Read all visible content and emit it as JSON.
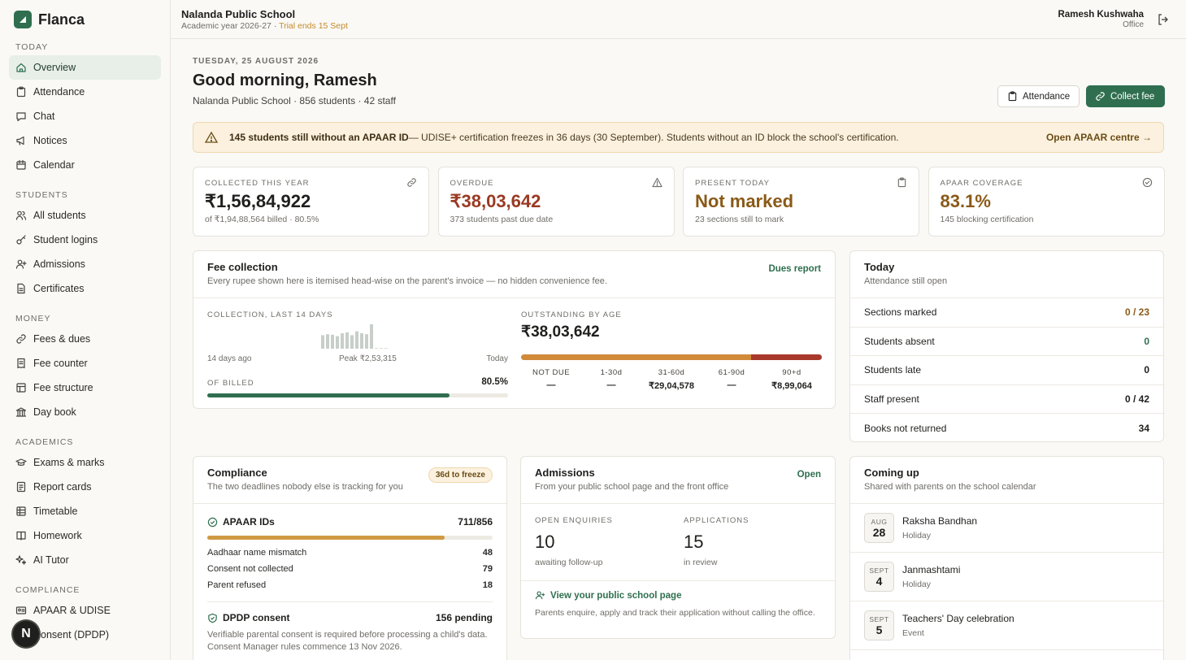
{
  "brand": {
    "name": "Flanca"
  },
  "sidebar": {
    "sections": [
      {
        "label": "TODAY",
        "items": [
          {
            "label": "Overview",
            "icon": "home-icon",
            "active": true
          },
          {
            "label": "Attendance",
            "icon": "clipboard-icon"
          },
          {
            "label": "Chat",
            "icon": "chat-icon"
          },
          {
            "label": "Notices",
            "icon": "megaphone-icon"
          },
          {
            "label": "Calendar",
            "icon": "calendar-icon"
          }
        ]
      },
      {
        "label": "STUDENTS",
        "items": [
          {
            "label": "All students",
            "icon": "users-icon"
          },
          {
            "label": "Student logins",
            "icon": "key-icon"
          },
          {
            "label": "Admissions",
            "icon": "user-plus-icon"
          },
          {
            "label": "Certificates",
            "icon": "document-icon"
          }
        ]
      },
      {
        "label": "MONEY",
        "items": [
          {
            "label": "Fees & dues",
            "icon": "link-icon"
          },
          {
            "label": "Fee counter",
            "icon": "receipt-icon"
          },
          {
            "label": "Fee structure",
            "icon": "grid-icon"
          },
          {
            "label": "Day book",
            "icon": "bank-icon"
          }
        ]
      },
      {
        "label": "ACADEMICS",
        "items": [
          {
            "label": "Exams & marks",
            "icon": "graduation-cap-icon"
          },
          {
            "label": "Report cards",
            "icon": "report-icon"
          },
          {
            "label": "Timetable",
            "icon": "table-icon"
          },
          {
            "label": "Homework",
            "icon": "book-icon"
          },
          {
            "label": "AI Tutor",
            "icon": "sparkle-icon"
          }
        ]
      },
      {
        "label": "COMPLIANCE",
        "items": [
          {
            "label": "APAAR & UDISE",
            "icon": "id-card-icon"
          },
          {
            "label": "Consent (DPDP)",
            "icon": "shield-icon"
          }
        ]
      }
    ],
    "fab_letter": "N"
  },
  "topbar": {
    "school": "Nalanda Public School",
    "academic_year": "Academic year 2026-27",
    "separator": " · ",
    "trial": "Trial ends 15 Sept",
    "user_name": "Ramesh Kushwaha",
    "user_role": "Office"
  },
  "header": {
    "date": "TUESDAY, 25 AUGUST 2026",
    "greeting": "Good morning, Ramesh",
    "subtitle": "Nalanda Public School · 856 students · 42 staff",
    "btn_attendance": "Attendance",
    "btn_collect": "Collect fee"
  },
  "alert": {
    "bold": "145 students still without an APAAR ID",
    "text": " — UDISE+ certification freezes in 36 days (30 September). Students without an ID block the school's certification.",
    "link": "Open APAAR centre →"
  },
  "stats": [
    {
      "label": "COLLECTED THIS YEAR",
      "value": "₹1,56,84,922",
      "caption": "of ₹1,94,88,564 billed · 80.5%",
      "icon": "link-icon",
      "color": "#1f1f1d"
    },
    {
      "label": "OVERDUE",
      "value": "₹38,03,642",
      "caption": "373 students past due date",
      "icon": "warning-icon",
      "color": "#9a3a22"
    },
    {
      "label": "PRESENT TODAY",
      "value": "Not marked",
      "caption": "23 sections still to mark",
      "icon": "clipboard-icon",
      "color": "#8a5a17"
    },
    {
      "label": "APAAR COVERAGE",
      "value": "83.1%",
      "caption": "145 blocking certification",
      "icon": "check-circle-icon",
      "color": "#8a5a17"
    }
  ],
  "fee": {
    "title": "Fee collection",
    "subtitle": "Every rupee shown here is itemised head-wise on the parent's invoice — no hidden convenience fee.",
    "action": "Dues report",
    "collection_label": "COLLECTION, LAST 14 DAYS",
    "left_caption": "14 days ago",
    "peak": "Peak ₹2,53,315",
    "right_caption": "Today",
    "billed_label": "OF BILLED",
    "billed_pct": "80.5%",
    "billed_fraction": 0.805,
    "outstanding_label": "OUTSTANDING BY AGE",
    "outstanding_value": "₹38,03,642",
    "buckets": [
      {
        "label": "NOT DUE",
        "value": "—"
      },
      {
        "label": "1-30d",
        "value": "—"
      },
      {
        "label": "31-60d",
        "value": "₹29,04,578"
      },
      {
        "label": "61-90d",
        "value": "—"
      },
      {
        "label": "90+d",
        "value": "₹8,99,064"
      }
    ],
    "age_split": {
      "31-60d": 29.04578,
      "90+d": 8.99064
    },
    "chart_data": {
      "type": "bar",
      "x": [
        "d1",
        "d2",
        "d3",
        "d4",
        "d5",
        "d6",
        "d7",
        "d8",
        "d9",
        "d10",
        "d11",
        "d12",
        "d13",
        "d14"
      ],
      "values": [
        1.4,
        1.5,
        1.45,
        1.3,
        1.6,
        1.7,
        1.4,
        1.8,
        1.6,
        1.5,
        2.53,
        0.0,
        0.05,
        0.05
      ],
      "unit": "lakh ₹"
    }
  },
  "today": {
    "title": "Today",
    "subtitle": "Attendance still open",
    "rows": [
      {
        "label": "Sections marked",
        "value": "0 / 23",
        "color": "#8a5a17"
      },
      {
        "label": "Students absent",
        "value": "0",
        "color": "#2f6f4f"
      },
      {
        "label": "Students late",
        "value": "0",
        "color": "#1f1f1d"
      },
      {
        "label": "Staff present",
        "value": "0 / 42",
        "color": "#1f1f1d"
      },
      {
        "label": "Books not returned",
        "value": "34",
        "color": "#1f1f1d"
      }
    ]
  },
  "compliance": {
    "title": "Compliance",
    "subtitle": "The two deadlines nobody else is tracking for you",
    "badge": "36d to freeze",
    "apaar_title": "APAAR IDs",
    "apaar_count": "711/856",
    "apaar_fraction": 0.831,
    "apaar_rows": [
      {
        "label": "Aadhaar name mismatch",
        "value": "48"
      },
      {
        "label": "Consent not collected",
        "value": "79"
      },
      {
        "label": "Parent refused",
        "value": "18"
      }
    ],
    "dpdp_title": "DPDP consent",
    "dpdp_count": "156 pending",
    "dpdp_text": "Verifiable parental consent is required before processing a child's data. Consent Manager rules commence 13 Nov 2026."
  },
  "admissions": {
    "title": "Admissions",
    "subtitle": "From your public school page and the front office",
    "action": "Open",
    "enquiries_label": "OPEN ENQUIRIES",
    "enquiries_value": "10",
    "enquiries_caption": "awaiting follow-up",
    "applications_label": "APPLICATIONS",
    "applications_value": "15",
    "applications_caption": "in review",
    "link": "View your public school page",
    "note": "Parents enquire, apply and track their application without calling the office."
  },
  "coming": {
    "title": "Coming up",
    "subtitle": "Shared with parents on the school calendar",
    "events": [
      {
        "month": "AUG",
        "day": "28",
        "name": "Raksha Bandhan",
        "type": "Holiday"
      },
      {
        "month": "SEPT",
        "day": "4",
        "name": "Janmashtami",
        "type": "Holiday"
      },
      {
        "month": "SEPT",
        "day": "5",
        "name": "Teachers' Day celebration",
        "type": "Event"
      }
    ]
  }
}
